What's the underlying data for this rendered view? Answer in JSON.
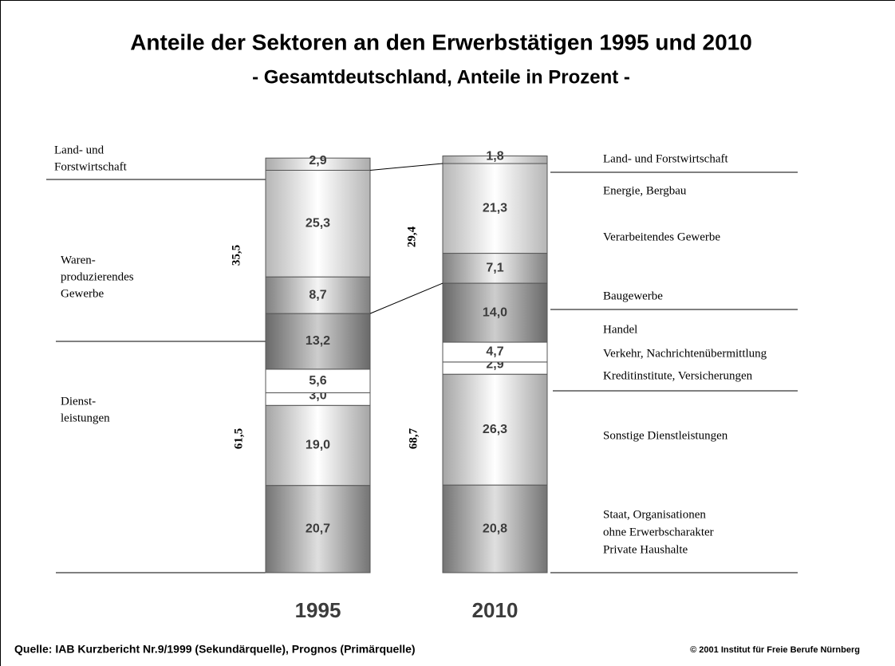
{
  "chart_data": {
    "type": "bar",
    "stacked": true,
    "title": "Anteile der Sektoren an den Erwerbstätigen 1995 und 2010",
    "subtitle": "- Gesamtdeutschland, Anteile in Prozent -",
    "categories": [
      "1995",
      "2010"
    ],
    "ylim": [
      0,
      99
    ],
    "series": [
      {
        "color": "#9a9a9a",
        "values": [
          20.7,
          20.8
        ],
        "value_labels": [
          "20,7",
          "20,8"
        ]
      },
      {
        "color": "#dcdcdc",
        "values": [
          19.0,
          26.3
        ],
        "value_labels": [
          "19,0",
          "26,3"
        ]
      },
      {
        "color": "#ffffff",
        "values": [
          3.0,
          2.9
        ],
        "value_labels": [
          "3,0",
          "2,9"
        ]
      },
      {
        "color": "#ffffff",
        "values": [
          5.6,
          4.7
        ],
        "value_labels": [
          "5,6",
          "4,7"
        ]
      },
      {
        "color": "#8c8c8c",
        "values": [
          13.2,
          14.0
        ],
        "value_labels": [
          "13,2",
          "14,0"
        ]
      },
      {
        "color": "#ababab",
        "values": [
          8.7,
          7.1
        ],
        "value_labels": [
          "8,7",
          "7,1"
        ]
      },
      {
        "color": "#f2f2f2",
        "values": [
          25.3,
          21.3
        ],
        "value_labels": [
          "25,3",
          "21,3"
        ]
      },
      {
        "color": "#e4e4e4",
        "values": [
          2.9,
          1.8
        ],
        "value_labels": [
          "2,9",
          "1,8"
        ]
      }
    ],
    "totals": [
      {
        "values": [
          35.5,
          29.4
        ],
        "value_labels": [
          "35,5",
          "29,4"
        ]
      },
      {
        "values": [
          61.5,
          68.7
        ],
        "value_labels": [
          "61,5",
          "68,7"
        ]
      }
    ],
    "left_labels": [
      [
        "Land- und",
        "Forstwirtschaft"
      ],
      [
        "Waren-",
        "produzierendes",
        "Gewerbe"
      ],
      [
        "Dienst-",
        "leistungen"
      ]
    ],
    "right_labels": [
      "Land- und Forstwirtschaft",
      "Energie, Bergbau",
      "Verarbeitendes Gewerbe",
      "Baugewerbe",
      "Handel",
      "Verkehr, Nachrichtenübermittlung",
      "Kreditinstitute, Versicherungen",
      "Sonstige Dienstleistungen",
      "Staat, Organisationen",
      "ohne Erwerbscharakter",
      "Private Haushalte"
    ],
    "source": "Quelle: IAB Kurzbericht Nr.9/1999 (Sekundärquelle), Prognos (Primärquelle)",
    "copyright": "© 2001 Institut für Freie Berufe Nürnberg"
  }
}
